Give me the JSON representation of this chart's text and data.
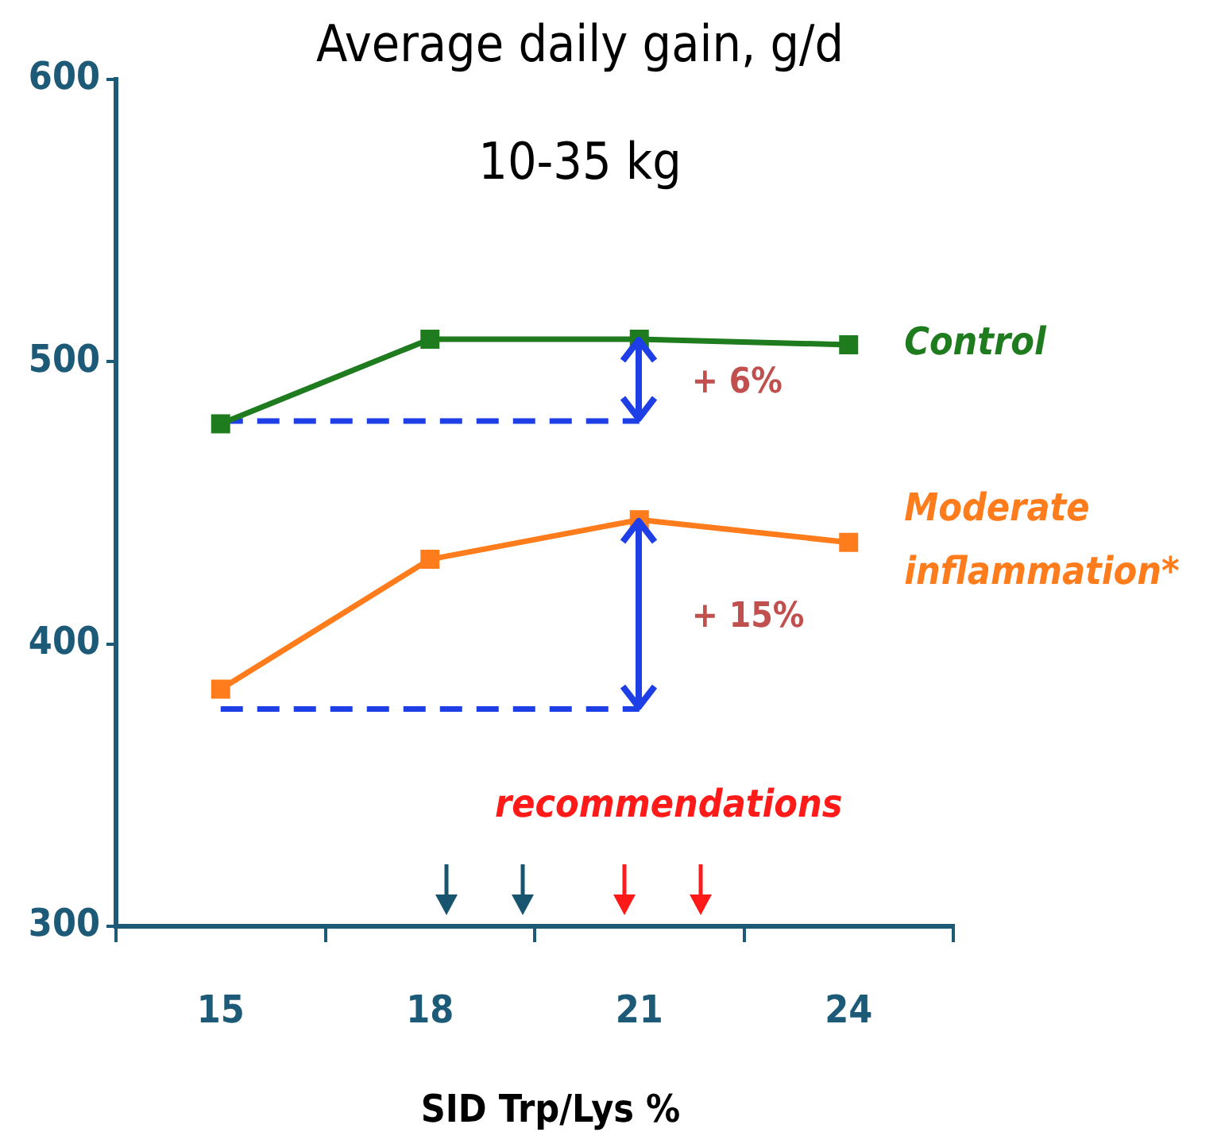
{
  "chart_data": {
    "type": "line",
    "title": "Average daily gain, g/d",
    "subtitle": "10-35 kg",
    "xlabel": "SID Trp/Lys %",
    "xlim": [
      13.5,
      25.5
    ],
    "xticks": [
      {
        "value": 13.5,
        "label": null
      },
      15,
      {
        "value": 16.5,
        "label": null
      },
      18,
      {
        "value": 19.5,
        "label": null
      },
      21,
      {
        "value": 22.5,
        "label": null
      },
      24,
      {
        "value": 25.5,
        "label": null
      }
    ],
    "ylim": [
      300,
      600
    ],
    "yticks": [
      300,
      400,
      500,
      600
    ],
    "grid": false,
    "legend": false,
    "marker": "square",
    "line_style": "solid",
    "series": [
      {
        "name": "Control",
        "color": "#1e7b1e",
        "x": [
          15,
          18,
          21,
          24
        ],
        "values": [
          478,
          508,
          508,
          506
        ]
      },
      {
        "name": "Moderate inflammation*",
        "color": "#ff7c1c",
        "x": [
          15,
          18,
          21,
          24
        ],
        "values": [
          384,
          430,
          444,
          436
        ]
      },
      {
        "color": "#1f3fe6",
        "x": [
          15,
          21
        ],
        "values": [
          479,
          479
        ],
        "marker": "none",
        "line_style": "dashed"
      },
      {
        "color": "#1f3fe6",
        "x": [
          15,
          21
        ],
        "values": [
          377,
          377
        ],
        "marker": "none",
        "line_style": "dashed"
      }
    ],
    "annotations": [
      "+ 6%",
      "+ 15%",
      "recommendations"
    ]
  }
}
